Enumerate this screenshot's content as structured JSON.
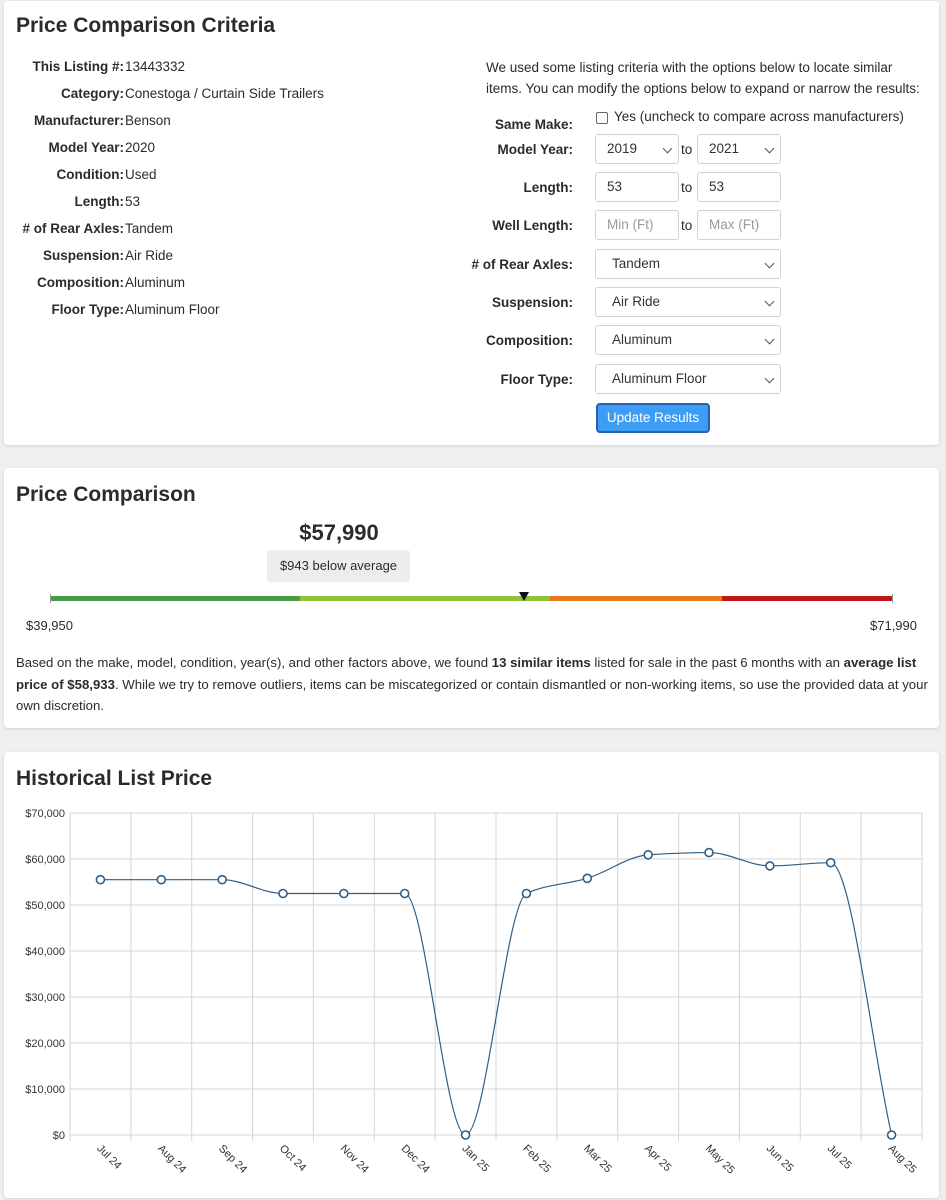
{
  "criteria": {
    "title": "Price Comparison Criteria",
    "details": [
      {
        "key": "This Listing #:",
        "value": "13443332"
      },
      {
        "key": "Category:",
        "value": "Conestoga / Curtain Side Trailers"
      },
      {
        "key": "Manufacturer:",
        "value": "Benson"
      },
      {
        "key": "Model Year:",
        "value": "2020"
      },
      {
        "key": "Condition:",
        "value": "Used"
      },
      {
        "key": "Length:",
        "value": "53"
      },
      {
        "key": "# of Rear Axles:",
        "value": "Tandem"
      },
      {
        "key": "Suspension:",
        "value": "Air Ride"
      },
      {
        "key": "Composition:",
        "value": "Aluminum"
      },
      {
        "key": "Floor Type:",
        "value": "Aluminum Floor"
      }
    ],
    "intro": "We used some listing criteria with the options below to locate similar items. You can modify the options below to expand or narrow the results:",
    "form": {
      "same_make_label": "Same Make:",
      "same_make_text": "Yes (uncheck to compare across manufacturers)",
      "model_year_label": "Model Year:",
      "model_year_from": "2019",
      "model_year_to": "2021",
      "length_label": "Length:",
      "length_from": "53",
      "length_to": "53",
      "well_length_label": "Well Length:",
      "well_length_min_placeholder": "Min (Ft)",
      "well_length_max_placeholder": "Max (Ft)",
      "axles_label": "# of Rear Axles:",
      "axles_value": "Tandem",
      "suspension_label": "Suspension:",
      "suspension_value": "Air Ride",
      "composition_label": "Composition:",
      "composition_value": "Aluminum",
      "floor_label": "Floor Type:",
      "floor_value": "Aluminum Floor",
      "to": "to",
      "update_button": "Update Results"
    }
  },
  "comparison": {
    "title": "Price Comparison",
    "price": "$57,990",
    "badge": "$943 below average",
    "min_label": "$39,950",
    "max_label": "$71,990",
    "colors": {
      "dark_green": "#4a9a46",
      "light_green": "#8fc33a",
      "orange": "#e6781e",
      "red": "#c01818"
    },
    "para_part1": "Based on the make, model, condition, year(s), and other factors above, we found ",
    "para_bold1": "13 similar items",
    "para_part2": " listed for sale in the past 6 months with an ",
    "para_bold2": "average list price of $58,933",
    "para_part3": ". While we try to remove outliers, items can be miscategorized or contain dismantled or non-working items, so use the provided data at your own discretion."
  },
  "history": {
    "title": "Historical List Price",
    "chart_data": {
      "type": "line",
      "title": "",
      "xlabel": "",
      "ylabel": "",
      "categories": [
        "Jul 24",
        "Aug 24",
        "Sep 24",
        "Oct 24",
        "Nov 24",
        "Dec 24",
        "Jan 25",
        "Feb 25",
        "Mar 25",
        "Apr 25",
        "May 25",
        "Jun 25",
        "Jul 25",
        "Aug 25"
      ],
      "values": [
        55500,
        55500,
        55500,
        52500,
        52500,
        52500,
        0,
        52500,
        55800,
        60900,
        61400,
        58500,
        59200,
        0
      ],
      "ylim": [
        0,
        70000
      ],
      "yticks": [
        "$0",
        "$10,000",
        "$20,000",
        "$30,000",
        "$40,000",
        "$50,000",
        "$60,000",
        "$70,000"
      ],
      "grid": true,
      "line_color": "#2f5e86"
    }
  }
}
